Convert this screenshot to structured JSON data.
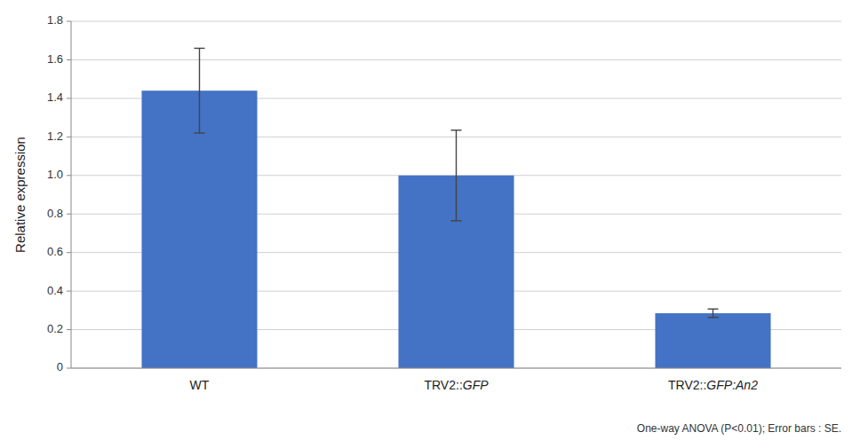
{
  "chart_data": {
    "type": "bar",
    "categories": [
      "WT",
      "TRV2::GFP",
      "TRV2::GFP:An2"
    ],
    "values": [
      1.44,
      1.0,
      0.285
    ],
    "errors": [
      0.22,
      0.235,
      0.022
    ],
    "color": "#4472C4",
    "ylabel": "Relative expression",
    "ylim": [
      0,
      1.8
    ],
    "yticks": [
      0,
      0.2,
      0.4,
      0.6,
      0.8,
      {
        "value": 1.0,
        "label": "1.0"
      },
      1.2,
      1.4,
      1.6,
      1.8
    ],
    "grid": true,
    "annotation": "One-way ANOVA  (P<0.01); Error bars : SE."
  }
}
